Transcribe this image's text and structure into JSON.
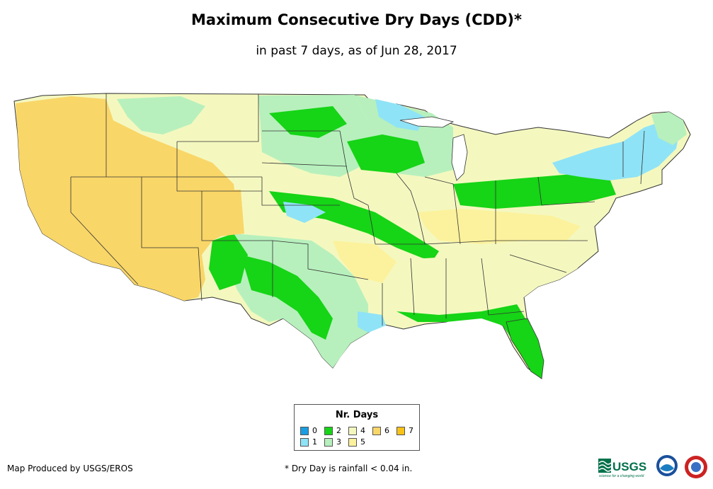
{
  "title": "Maximum Consecutive Dry Days (CDD)*",
  "subtitle": "in past 7 days, as of Jun 28, 2017",
  "legend": {
    "title": "Nr. Days",
    "items": [
      {
        "label": "0",
        "color": "#1b9de2"
      },
      {
        "label": "1",
        "color": "#8fe3f6"
      },
      {
        "label": "2",
        "color": "#16d416"
      },
      {
        "label": "3",
        "color": "#b7f0bd"
      },
      {
        "label": "4",
        "color": "#f4f8bf"
      },
      {
        "label": "5",
        "color": "#fcf29d"
      },
      {
        "label": "6",
        "color": "#f9d668"
      },
      {
        "label": "7",
        "color": "#f9c218"
      }
    ]
  },
  "credit": "Map Produced by USGS/EROS",
  "footnote": "* Dry Day is rainfall < 0.04 in.",
  "logos": {
    "usgs": "USGS",
    "usgs_tagline": "science for a changing world"
  }
}
